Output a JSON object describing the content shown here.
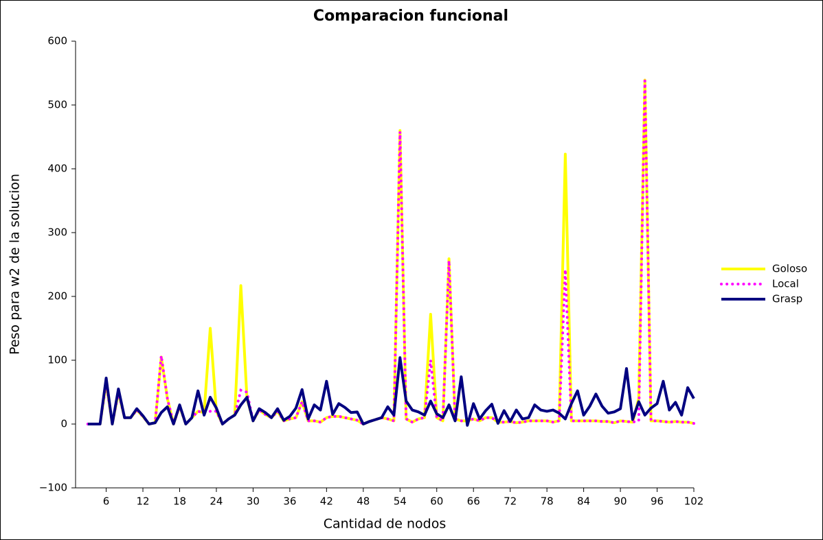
{
  "chart_data": {
    "type": "line",
    "title": "Comparacion funcional",
    "x_label": "Cantidad de nodos",
    "y_label": "Peso para w2 de la solucion",
    "x": [
      3,
      4,
      5,
      6,
      7,
      8,
      9,
      10,
      11,
      12,
      13,
      14,
      15,
      16,
      17,
      18,
      19,
      20,
      21,
      22,
      23,
      24,
      25,
      26,
      27,
      28,
      29,
      30,
      31,
      32,
      33,
      34,
      35,
      36,
      37,
      38,
      39,
      40,
      41,
      42,
      43,
      44,
      45,
      46,
      47,
      48,
      49,
      50,
      51,
      52,
      53,
      54,
      55,
      56,
      57,
      58,
      59,
      60,
      61,
      62,
      63,
      64,
      65,
      66,
      67,
      68,
      69,
      70,
      71,
      72,
      73,
      74,
      75,
      76,
      77,
      78,
      79,
      80,
      81,
      82,
      83,
      84,
      85,
      86,
      87,
      88,
      89,
      90,
      91,
      92,
      93,
      94,
      95,
      96,
      97,
      98,
      99,
      100,
      101,
      102
    ],
    "series": [
      {
        "name": "Goloso",
        "color": "#ffff00",
        "linestyle": "solid",
        "values": [
          0,
          0,
          0,
          65,
          0,
          50,
          10,
          10,
          22,
          12,
          0,
          2,
          105,
          40,
          0,
          28,
          0,
          10,
          20,
          18,
          150,
          20,
          0,
          8,
          14,
          217,
          40,
          5,
          22,
          15,
          10,
          20,
          5,
          8,
          10,
          35,
          5,
          5,
          3,
          10,
          12,
          12,
          10,
          8,
          6,
          0,
          4,
          7,
          10,
          8,
          5,
          460,
          8,
          3,
          8,
          10,
          172,
          10,
          5,
          259,
          8,
          5,
          5,
          8,
          5,
          10,
          10,
          3,
          3,
          4,
          2,
          3,
          5,
          5,
          5,
          5,
          3,
          5,
          423,
          5,
          5,
          5,
          5,
          5,
          4,
          4,
          2,
          5,
          4,
          3,
          40,
          539,
          5,
          5,
          4,
          3,
          4,
          3,
          3,
          1
        ]
      },
      {
        "name": "Local",
        "color": "#ff00ff",
        "linestyle": "dotted",
        "values": [
          0,
          0,
          0,
          65,
          0,
          50,
          10,
          10,
          22,
          12,
          0,
          2,
          107,
          40,
          0,
          28,
          0,
          10,
          20,
          18,
          20,
          20,
          0,
          8,
          14,
          53,
          50,
          5,
          22,
          15,
          10,
          20,
          5,
          8,
          10,
          35,
          5,
          5,
          3,
          10,
          12,
          12,
          10,
          8,
          6,
          0,
          4,
          7,
          10,
          8,
          5,
          458,
          8,
          3,
          8,
          10,
          100,
          10,
          5,
          256,
          8,
          5,
          5,
          8,
          5,
          10,
          10,
          3,
          3,
          4,
          2,
          3,
          5,
          5,
          5,
          5,
          3,
          5,
          242,
          5,
          5,
          5,
          5,
          5,
          4,
          4,
          2,
          5,
          4,
          3,
          5,
          538,
          5,
          5,
          4,
          3,
          4,
          3,
          3,
          1
        ]
      },
      {
        "name": "Grasp",
        "color": "#000080",
        "linestyle": "solid",
        "values": [
          0,
          0,
          0,
          72,
          0,
          55,
          10,
          10,
          24,
          13,
          0,
          2,
          18,
          27,
          0,
          30,
          0,
          10,
          52,
          14,
          42,
          25,
          0,
          8,
          14,
          30,
          42,
          5,
          24,
          18,
          10,
          24,
          6,
          12,
          25,
          54,
          8,
          30,
          22,
          67,
          15,
          32,
          26,
          18,
          19,
          0,
          4,
          7,
          10,
          27,
          14,
          104,
          36,
          22,
          19,
          14,
          36,
          16,
          10,
          30,
          5,
          74,
          -2,
          32,
          8,
          21,
          31,
          1,
          21,
          4,
          22,
          8,
          10,
          30,
          22,
          20,
          22,
          17,
          8,
          32,
          52,
          14,
          28,
          47,
          28,
          17,
          19,
          24,
          87,
          7,
          35,
          14,
          25,
          32,
          67,
          22,
          34,
          14,
          57,
          40
        ]
      }
    ],
    "xlim": [
      1,
      102
    ],
    "xticks": [
      6,
      12,
      18,
      24,
      30,
      36,
      42,
      48,
      54,
      60,
      66,
      72,
      78,
      84,
      90,
      96,
      102
    ],
    "ylim": [
      -100,
      600
    ],
    "yticks": [
      {
        "value": -100,
        "label": "−100"
      },
      0,
      100,
      200,
      300,
      400,
      500,
      600
    ],
    "legend": "right"
  }
}
